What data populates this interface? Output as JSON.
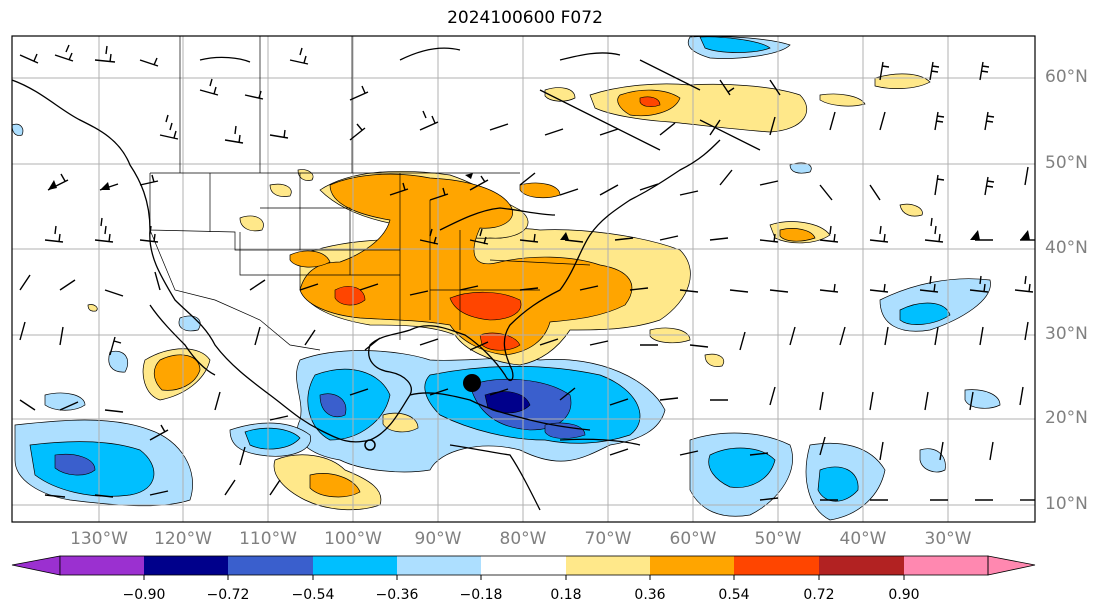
{
  "title": "2024100600 F072",
  "lat_labels": [
    "60°N",
    "50°N",
    "40°N",
    "30°N",
    "20°N",
    "10°N"
  ],
  "lon_labels": [
    "130°W",
    "120°W",
    "110°W",
    "100°W",
    "90°W",
    "80°W",
    "70°W",
    "60°W",
    "50°W",
    "40°W",
    "30°W"
  ],
  "colorbar": {
    "ticks": [
      "−0.90",
      "−0.72",
      "−0.54",
      "−0.36",
      "−0.18",
      "0.18",
      "0.36",
      "0.54",
      "0.72",
      "0.90"
    ],
    "colors": [
      "#9b30d0",
      "#00008b",
      "#3a5fcd",
      "#00bfff",
      "#addfff",
      "#ffffff",
      "#ffe88a",
      "#ffa500",
      "#ff4500",
      "#b22222",
      "#ff88b0"
    ]
  },
  "features": {
    "marker": "filled-circle",
    "open_marker": "open-circle"
  }
}
